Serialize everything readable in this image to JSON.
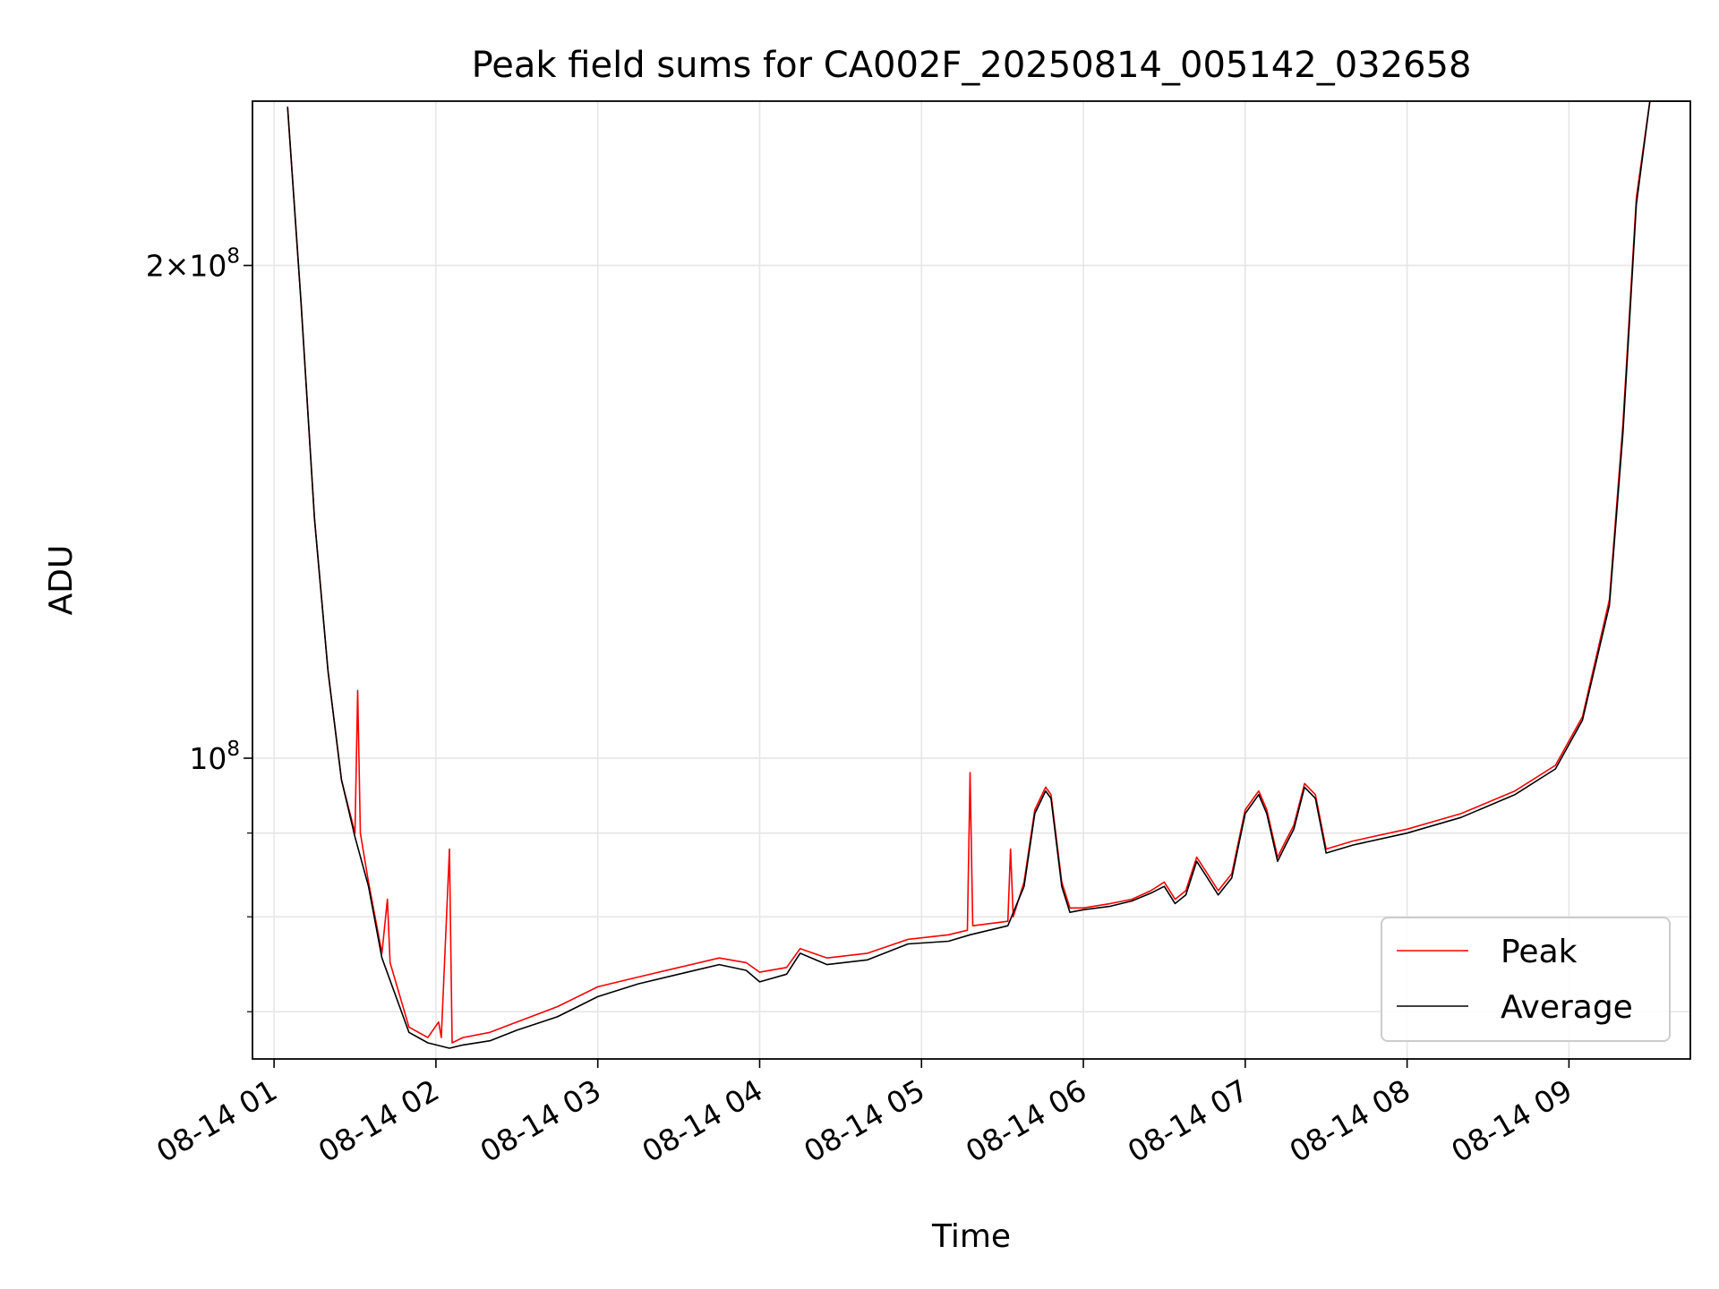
{
  "chart_data": {
    "type": "line",
    "title": "Peak field sums for CA002F_20250814_005142_032658",
    "xlabel": "Time",
    "ylabel": "ADU",
    "yscale": "log",
    "ylim": [
      65500000,
      252000000
    ],
    "xlim": [
      "2025-08-14 00:52",
      "2025-08-14 09:45"
    ],
    "grid": true,
    "legend_position": "lower-right",
    "x_ticks": [
      "08-14 01",
      "08-14 02",
      "08-14 03",
      "08-14 04",
      "08-14 05",
      "08-14 06",
      "08-14 07",
      "08-14 08",
      "08-14 09"
    ],
    "x_tick_times": [
      "2025-08-14 01:00",
      "2025-08-14 02:00",
      "2025-08-14 03:00",
      "2025-08-14 04:00",
      "2025-08-14 05:00",
      "2025-08-14 06:00",
      "2025-08-14 07:00",
      "2025-08-14 08:00",
      "2025-08-14 09:00"
    ],
    "y_ticks": [
      {
        "label_base": "2×10",
        "label_exp": "8",
        "value": 200000000
      },
      {
        "label_base": "10",
        "label_exp": "8",
        "value": 100000000
      }
    ],
    "y_minor_ticks": [
      70000000,
      80000000,
      90000000
    ],
    "series": [
      {
        "name": "Peak",
        "color": "#ff0000",
        "points": [
          [
            "2025-08-14 01:05",
            250000000
          ],
          [
            "2025-08-14 01:10",
            190000000
          ],
          [
            "2025-08-14 01:15",
            140000000
          ],
          [
            "2025-08-14 01:20",
            113000000
          ],
          [
            "2025-08-14 01:25",
            97000000
          ],
          [
            "2025-08-14 01:30",
            90000000
          ],
          [
            "2025-08-14 01:31",
            110000000
          ],
          [
            "2025-08-14 01:32",
            90000000
          ],
          [
            "2025-08-14 01:35",
            84000000
          ],
          [
            "2025-08-14 01:40",
            76000000
          ],
          [
            "2025-08-14 01:42",
            82000000
          ],
          [
            "2025-08-14 01:43",
            75000000
          ],
          [
            "2025-08-14 01:50",
            68500000
          ],
          [
            "2025-08-14 01:57",
            67500000
          ],
          [
            "2025-08-14 02:01",
            69000000
          ],
          [
            "2025-08-14 02:02",
            67500000
          ],
          [
            "2025-08-14 02:05",
            88000000
          ],
          [
            "2025-08-14 02:06",
            67000000
          ],
          [
            "2025-08-14 02:10",
            67500000
          ],
          [
            "2025-08-14 02:20",
            68000000
          ],
          [
            "2025-08-14 02:30",
            69000000
          ],
          [
            "2025-08-14 02:45",
            70500000
          ],
          [
            "2025-08-14 03:00",
            72500000
          ],
          [
            "2025-08-14 03:15",
            73500000
          ],
          [
            "2025-08-14 03:30",
            74500000
          ],
          [
            "2025-08-14 03:45",
            75500000
          ],
          [
            "2025-08-14 03:55",
            75000000
          ],
          [
            "2025-08-14 04:00",
            74000000
          ],
          [
            "2025-08-14 04:10",
            74500000
          ],
          [
            "2025-08-14 04:15",
            76500000
          ],
          [
            "2025-08-14 04:25",
            75500000
          ],
          [
            "2025-08-14 04:40",
            76000000
          ],
          [
            "2025-08-14 04:55",
            77500000
          ],
          [
            "2025-08-14 05:10",
            78000000
          ],
          [
            "2025-08-14 05:17",
            78500000
          ],
          [
            "2025-08-14 05:18",
            98000000
          ],
          [
            "2025-08-14 05:19",
            79000000
          ],
          [
            "2025-08-14 05:32",
            79500000
          ],
          [
            "2025-08-14 05:33",
            88000000
          ],
          [
            "2025-08-14 05:34",
            80000000
          ],
          [
            "2025-08-14 05:38",
            84000000
          ],
          [
            "2025-08-14 05:42",
            93000000
          ],
          [
            "2025-08-14 05:46",
            96000000
          ],
          [
            "2025-08-14 05:48",
            95000000
          ],
          [
            "2025-08-14 05:52",
            84000000
          ],
          [
            "2025-08-14 05:55",
            81000000
          ],
          [
            "2025-08-14 06:00",
            81000000
          ],
          [
            "2025-08-14 06:10",
            81500000
          ],
          [
            "2025-08-14 06:18",
            82000000
          ],
          [
            "2025-08-14 06:25",
            83000000
          ],
          [
            "2025-08-14 06:30",
            84000000
          ],
          [
            "2025-08-14 06:34",
            82000000
          ],
          [
            "2025-08-14 06:38",
            83000000
          ],
          [
            "2025-08-14 06:42",
            87000000
          ],
          [
            "2025-08-14 06:46",
            85000000
          ],
          [
            "2025-08-14 06:50",
            83000000
          ],
          [
            "2025-08-14 06:55",
            85000000
          ],
          [
            "2025-08-14 07:00",
            93000000
          ],
          [
            "2025-08-14 07:05",
            95500000
          ],
          [
            "2025-08-14 07:08",
            93000000
          ],
          [
            "2025-08-14 07:12",
            87000000
          ],
          [
            "2025-08-14 07:15",
            89000000
          ],
          [
            "2025-08-14 07:18",
            91000000
          ],
          [
            "2025-08-14 07:22",
            96500000
          ],
          [
            "2025-08-14 07:26",
            95000000
          ],
          [
            "2025-08-14 07:30",
            88000000
          ],
          [
            "2025-08-14 07:40",
            89000000
          ],
          [
            "2025-08-14 08:00",
            90500000
          ],
          [
            "2025-08-14 08:20",
            92500000
          ],
          [
            "2025-08-14 08:40",
            95500000
          ],
          [
            "2025-08-14 08:55",
            99000000
          ],
          [
            "2025-08-14 09:05",
            106000000
          ],
          [
            "2025-08-14 09:15",
            125000000
          ],
          [
            "2025-08-14 09:20",
            160000000
          ],
          [
            "2025-08-14 09:25",
            220000000
          ],
          [
            "2025-08-14 09:30",
            252000000
          ],
          [
            "2025-08-14 09:45",
            252000000
          ]
        ]
      },
      {
        "name": "Average",
        "color": "#000000",
        "points": [
          [
            "2025-08-14 01:05",
            250000000
          ],
          [
            "2025-08-14 01:10",
            190000000
          ],
          [
            "2025-08-14 01:15",
            140000000
          ],
          [
            "2025-08-14 01:20",
            113000000
          ],
          [
            "2025-08-14 01:25",
            97000000
          ],
          [
            "2025-08-14 01:30",
            89500000
          ],
          [
            "2025-08-14 01:35",
            83500000
          ],
          [
            "2025-08-14 01:40",
            75500000
          ],
          [
            "2025-08-14 01:50",
            68000000
          ],
          [
            "2025-08-14 01:57",
            67000000
          ],
          [
            "2025-08-14 02:05",
            66500000
          ],
          [
            "2025-08-14 02:10",
            66800000
          ],
          [
            "2025-08-14 02:20",
            67200000
          ],
          [
            "2025-08-14 02:30",
            68200000
          ],
          [
            "2025-08-14 02:45",
            69500000
          ],
          [
            "2025-08-14 03:00",
            71500000
          ],
          [
            "2025-08-14 03:15",
            72800000
          ],
          [
            "2025-08-14 03:30",
            73800000
          ],
          [
            "2025-08-14 03:45",
            74800000
          ],
          [
            "2025-08-14 03:55",
            74200000
          ],
          [
            "2025-08-14 04:00",
            73000000
          ],
          [
            "2025-08-14 04:10",
            73800000
          ],
          [
            "2025-08-14 04:15",
            76000000
          ],
          [
            "2025-08-14 04:25",
            74800000
          ],
          [
            "2025-08-14 04:40",
            75300000
          ],
          [
            "2025-08-14 04:55",
            77000000
          ],
          [
            "2025-08-14 05:10",
            77300000
          ],
          [
            "2025-08-14 05:18",
            78000000
          ],
          [
            "2025-08-14 05:32",
            79000000
          ],
          [
            "2025-08-14 05:38",
            83500000
          ],
          [
            "2025-08-14 05:42",
            92500000
          ],
          [
            "2025-08-14 05:46",
            95500000
          ],
          [
            "2025-08-14 05:48",
            94500000
          ],
          [
            "2025-08-14 05:52",
            83500000
          ],
          [
            "2025-08-14 05:55",
            80500000
          ],
          [
            "2025-08-14 06:00",
            80800000
          ],
          [
            "2025-08-14 06:10",
            81200000
          ],
          [
            "2025-08-14 06:18",
            81800000
          ],
          [
            "2025-08-14 06:25",
            82700000
          ],
          [
            "2025-08-14 06:30",
            83500000
          ],
          [
            "2025-08-14 06:34",
            81500000
          ],
          [
            "2025-08-14 06:38",
            82500000
          ],
          [
            "2025-08-14 06:42",
            86500000
          ],
          [
            "2025-08-14 06:46",
            84500000
          ],
          [
            "2025-08-14 06:50",
            82500000
          ],
          [
            "2025-08-14 06:55",
            84500000
          ],
          [
            "2025-08-14 07:00",
            92500000
          ],
          [
            "2025-08-14 07:05",
            95000000
          ],
          [
            "2025-08-14 07:08",
            92500000
          ],
          [
            "2025-08-14 07:12",
            86500000
          ],
          [
            "2025-08-14 07:15",
            88500000
          ],
          [
            "2025-08-14 07:18",
            90500000
          ],
          [
            "2025-08-14 07:22",
            96000000
          ],
          [
            "2025-08-14 07:26",
            94500000
          ],
          [
            "2025-08-14 07:30",
            87500000
          ],
          [
            "2025-08-14 07:40",
            88500000
          ],
          [
            "2025-08-14 08:00",
            90000000
          ],
          [
            "2025-08-14 08:20",
            92000000
          ],
          [
            "2025-08-14 08:40",
            95000000
          ],
          [
            "2025-08-14 08:55",
            98500000
          ],
          [
            "2025-08-14 09:05",
            105500000
          ],
          [
            "2025-08-14 09:15",
            124000000
          ],
          [
            "2025-08-14 09:20",
            158000000
          ],
          [
            "2025-08-14 09:25",
            218000000
          ],
          [
            "2025-08-14 09:30",
            252000000
          ],
          [
            "2025-08-14 09:45",
            252000000
          ]
        ]
      }
    ]
  }
}
